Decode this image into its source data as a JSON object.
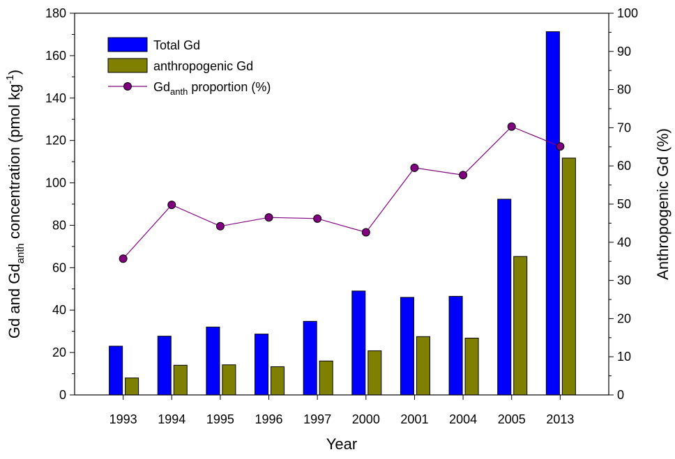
{
  "chart_data": {
    "type": "bar",
    "categories": [
      "1993",
      "1994",
      "1995",
      "1996",
      "1997",
      "2000",
      "2001",
      "2004",
      "2005",
      "2013"
    ],
    "xlabel": "Year",
    "ylabel": {
      "prefix": "Gd and Gd",
      "sub": "anth",
      "middle": " concentration (pmol kg",
      "sup": "-1",
      "suffix": ")"
    },
    "ylabel_right": "Anthropogenic Gd (%)",
    "ylim": [
      0,
      180
    ],
    "yticks": [
      0,
      20,
      40,
      60,
      80,
      100,
      120,
      140,
      160,
      180
    ],
    "ylim_right": [
      0,
      100
    ],
    "yticks_right": [
      0,
      10,
      20,
      30,
      40,
      50,
      60,
      70,
      80,
      90,
      100
    ],
    "grid": false,
    "legend_position": "top-left",
    "series": [
      {
        "name": "Total Gd",
        "type": "bar",
        "axis": "left",
        "color": "#0000ff",
        "values": [
          23,
          27.7,
          32,
          28.7,
          34.7,
          49,
          46,
          46.5,
          92.3,
          171.3
        ]
      },
      {
        "name": "anthropogenic Gd",
        "type": "bar",
        "axis": "left",
        "color": "#808000",
        "values": [
          8,
          14,
          14.2,
          13.3,
          16,
          20.8,
          27.5,
          26.8,
          65.3,
          111.7
        ]
      },
      {
        "name": "Gdanth proportion (%)",
        "legend": {
          "prefix": "Gd",
          "sub": "anth",
          "suffix": " proportion (%)"
        },
        "type": "line",
        "axis": "right",
        "color": "#800080",
        "marker_color": "#800080",
        "values": [
          35.7,
          49.8,
          44.2,
          46.5,
          46.2,
          42.6,
          59.5,
          57.6,
          70.3,
          65.1
        ]
      }
    ]
  }
}
